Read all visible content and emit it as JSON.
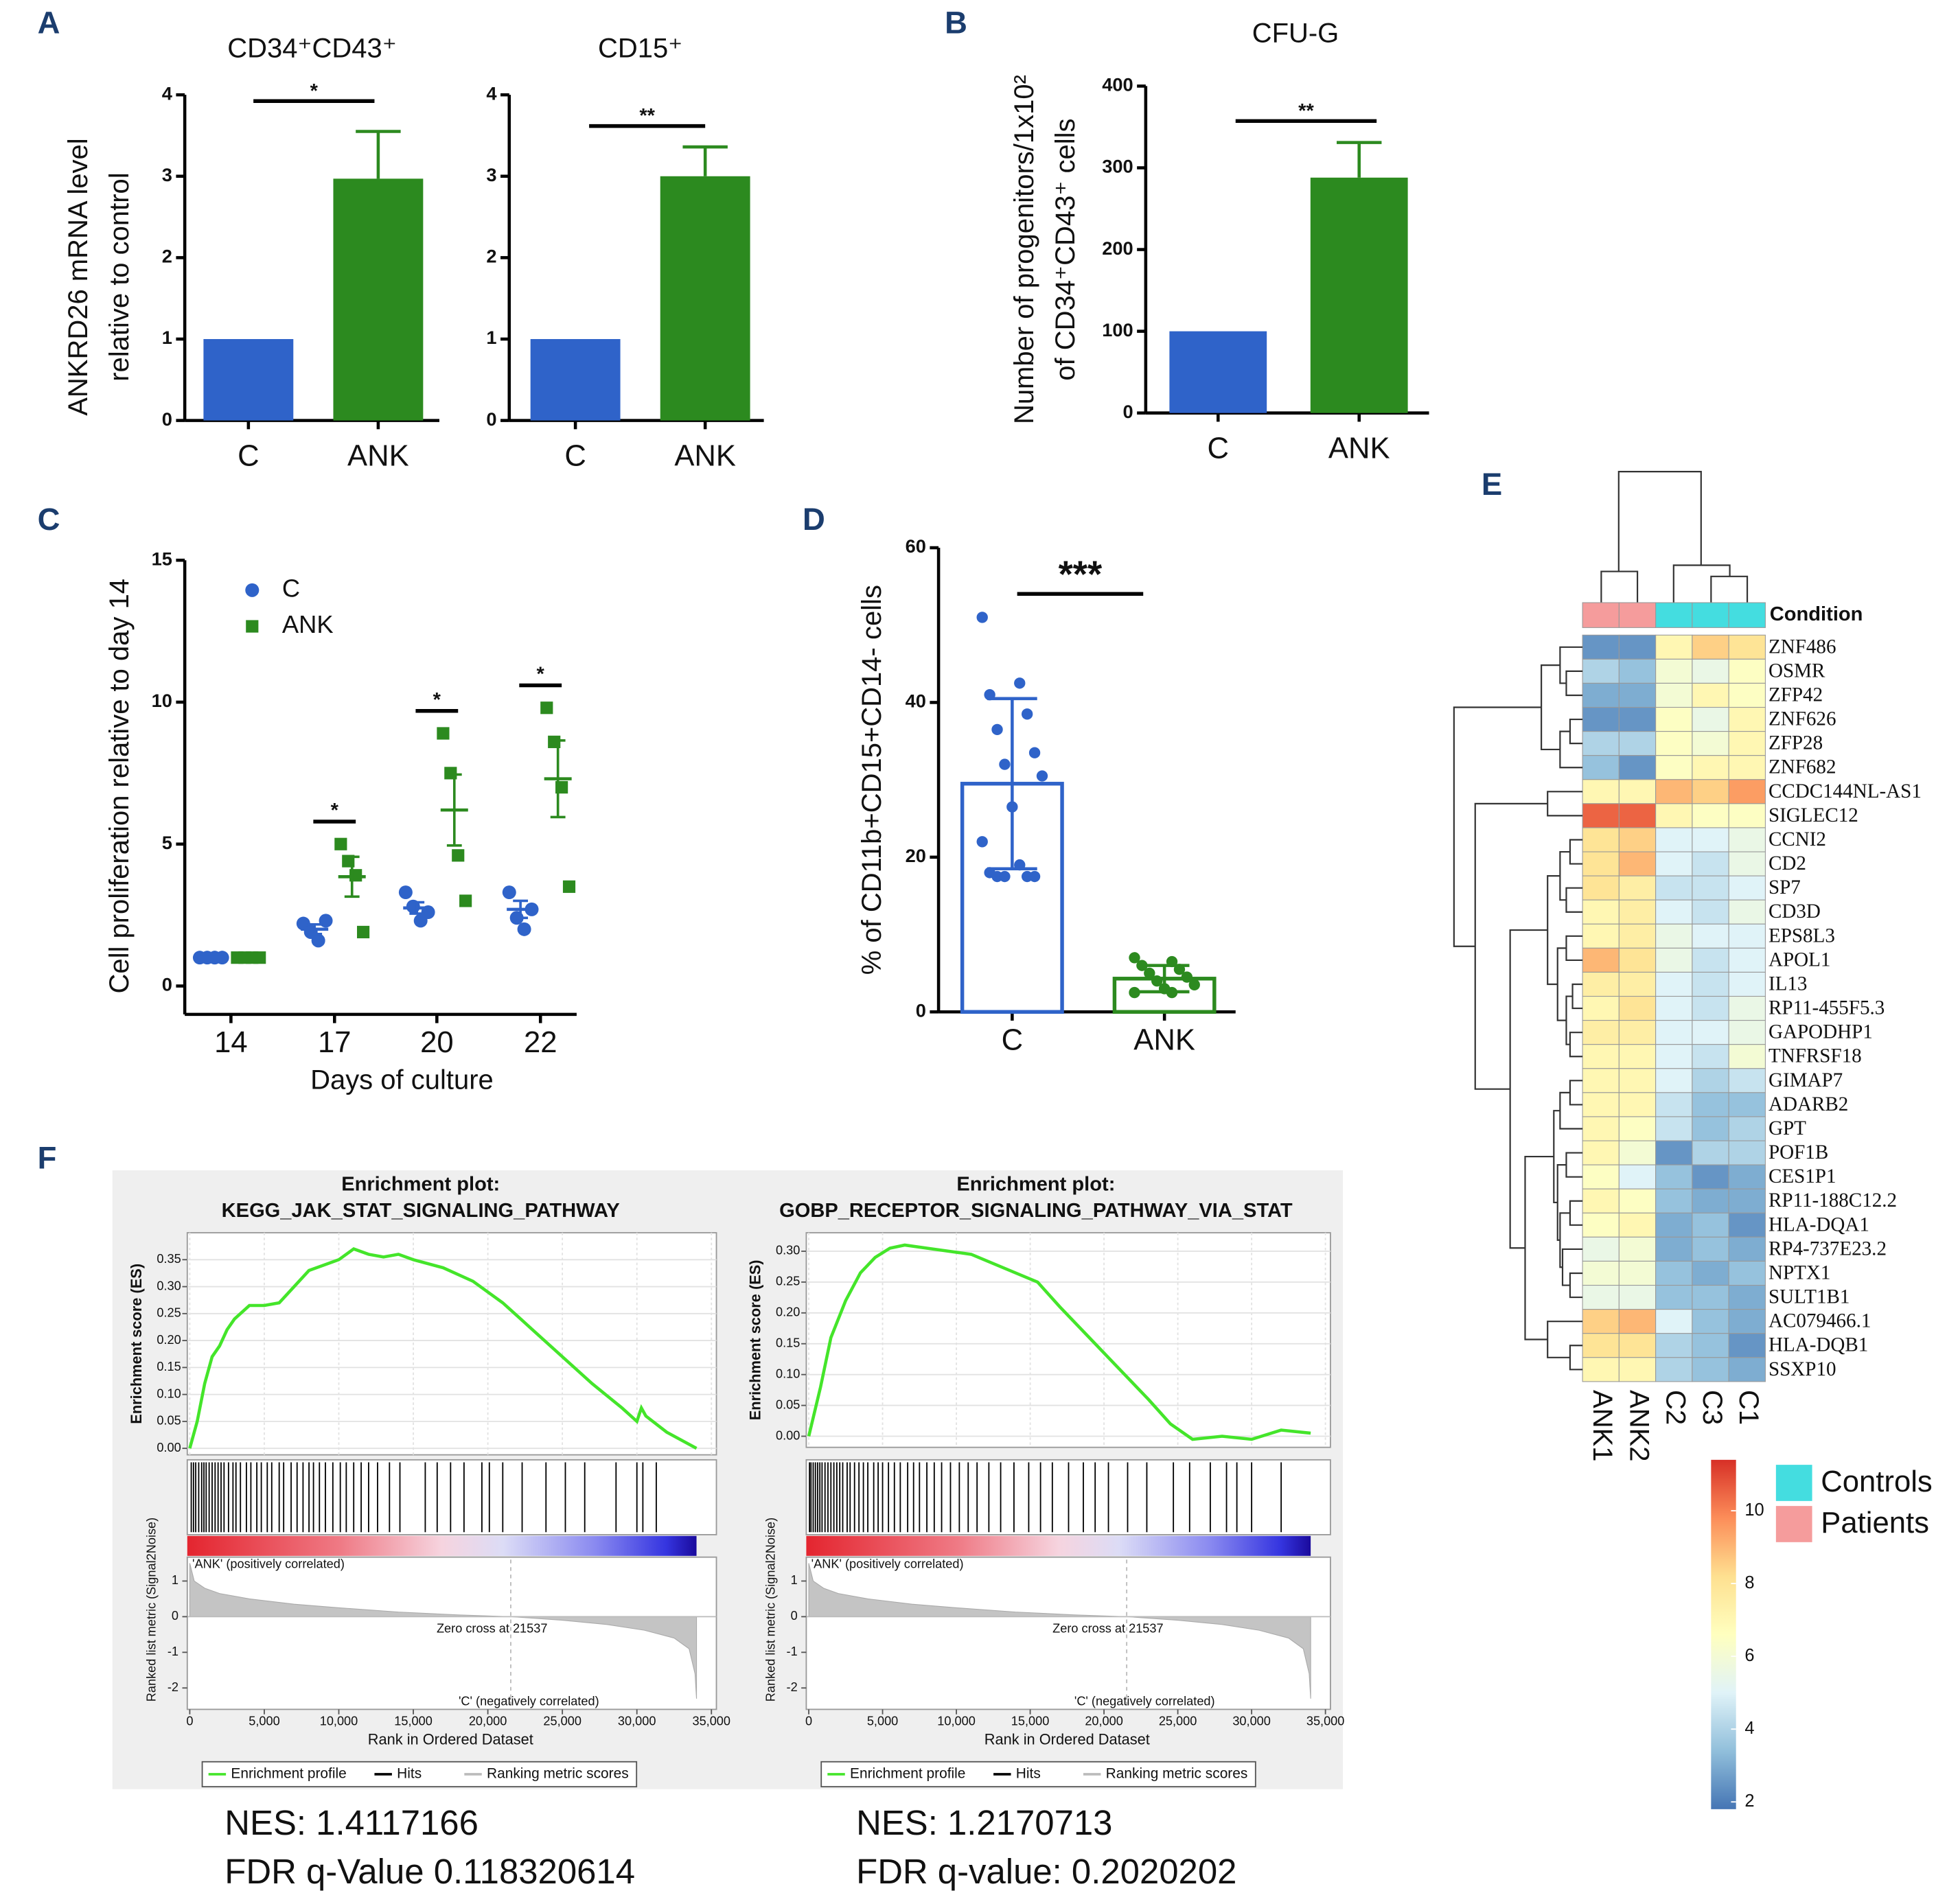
{
  "panel_labels": [
    "A",
    "B",
    "C",
    "D",
    "E",
    "F"
  ],
  "chart_data": [
    {
      "type": "bar",
      "title": "CD34⁺CD43⁺",
      "ylabel": [
        "ANKRD26 mRNA level",
        "relative to control"
      ],
      "categories": [
        "C",
        "ANK"
      ],
      "values": [
        1,
        2.97
      ],
      "errors": [
        null,
        0.58
      ],
      "colors": [
        "#2f63c9",
        "#2c8a1f"
      ],
      "ylim": [
        0,
        4
      ],
      "yticks": [
        0,
        1,
        2,
        3,
        4
      ],
      "significance": "*"
    },
    {
      "type": "bar",
      "title": "CD15⁺",
      "categories": [
        "C",
        "ANK"
      ],
      "values": [
        1,
        3.0
      ],
      "errors": [
        null,
        0.36
      ],
      "colors": [
        "#2f63c9",
        "#2c8a1f"
      ],
      "ylim": [
        0,
        4
      ],
      "yticks": [
        0,
        1,
        2,
        3,
        4
      ],
      "significance": "**"
    },
    {
      "type": "bar",
      "title": "CFU-G",
      "ylabel": [
        "Number of progenitors/1x10²",
        "of CD34⁺CD43⁺ cells"
      ],
      "categories": [
        "C",
        "ANK"
      ],
      "values": [
        100,
        288
      ],
      "errors": [
        null,
        43
      ],
      "colors": [
        "#2f63c9",
        "#2c8a1f"
      ],
      "ylim": [
        0,
        400
      ],
      "yticks": [
        0,
        100,
        200,
        300,
        400
      ],
      "significance": "**"
    },
    {
      "type": "dot",
      "xlabel": "Days of culture",
      "ylabel": "Cell proliferation relative to day 14",
      "categories": [
        "14",
        "17",
        "20",
        "22"
      ],
      "series": [
        {
          "name": "C",
          "color": "#2f63c9",
          "marker": "circle",
          "points": [
            [
              1,
              1,
              1,
              1
            ],
            [
              2.2,
              1.9,
              1.6,
              2.3
            ],
            [
              3.3,
              2.8,
              2.3,
              2.6
            ],
            [
              3.3,
              2.4,
              2.0,
              2.7
            ]
          ],
          "means": [
            1,
            2.0,
            2.75,
            2.7
          ],
          "sems": [
            0,
            0.17,
            0.2,
            0.3
          ]
        },
        {
          "name": "ANK",
          "color": "#2c8a1f",
          "marker": "square",
          "points": [
            [
              1,
              1,
              1,
              1
            ],
            [
              5.0,
              4.4,
              3.9,
              1.9
            ],
            [
              8.9,
              7.5,
              4.6,
              3.0
            ],
            [
              9.8,
              8.6,
              7.0,
              3.5
            ]
          ],
          "means": [
            1,
            3.85,
            6.2,
            7.3
          ],
          "sems": [
            0,
            0.7,
            1.25,
            1.35
          ]
        }
      ],
      "annotations": [
        null,
        "*",
        "*",
        "*"
      ],
      "ylim": [
        -1,
        15
      ],
      "yticks": [
        0,
        5,
        10,
        15
      ]
    },
    {
      "type": "bar_dot",
      "ylabel": "% of CD11b+CD15+CD14- cells",
      "categories": [
        "C",
        "ANK"
      ],
      "values": [
        29.5,
        4.3
      ],
      "errors": [
        11,
        1.7
      ],
      "colors": [
        "#2f63c9",
        "#2c8a1f"
      ],
      "points": [
        [
          51,
          42.5,
          41,
          38.5,
          36.5,
          33.5,
          32,
          30.5,
          26.5,
          22,
          19,
          18,
          17.5,
          17.5,
          17.5,
          17.5
        ],
        [
          7,
          6.5,
          6,
          5.5,
          5,
          4.5,
          4,
          3.5,
          3,
          2.5,
          2.5
        ]
      ],
      "ylim": [
        0,
        60
      ],
      "yticks": [
        0,
        20,
        40,
        60
      ],
      "significance": "***"
    },
    {
      "type": "heatmap",
      "legend_title": "Condition",
      "columns": [
        "ANK1",
        "ANK2",
        "C2",
        "C3",
        "C1"
      ],
      "column_condition": [
        "Patients",
        "Patients",
        "Controls",
        "Controls",
        "Controls"
      ],
      "legend": [
        {
          "name": "Controls",
          "color": "#44dde0"
        },
        {
          "name": "Patients",
          "color": "#f59c9c"
        }
      ],
      "rows": [
        "ZNF486",
        "OSMR",
        "ZFP42",
        "ZNF626",
        "ZFP28",
        "ZNF682",
        "CCDC144NL-AS1",
        "SIGLEC12",
        "CCNI2",
        "CD2",
        "SP7",
        "CD3D",
        "EPS8L3",
        "APOL1",
        "IL13",
        "RP11-455F5.3",
        "GAPODHP1",
        "TNFRSF18",
        "GIMAP7",
        "ADARB2",
        "GPT",
        "POF1B",
        "CES1P1",
        "RP11-188C12.2",
        "HLA-DQA1",
        "RP4-737E23.2",
        "NPTX1",
        "SULT1B1",
        "AC079466.1",
        "HLA-DQB1",
        "SSXP10"
      ],
      "values": [
        [
          2.5,
          2.5,
          7,
          8.5,
          8
        ],
        [
          4,
          3.5,
          6,
          5.5,
          6.5
        ],
        [
          3,
          3,
          6,
          7,
          6.5
        ],
        [
          2.5,
          2.5,
          6.5,
          5.5,
          7
        ],
        [
          4,
          4,
          6.5,
          6,
          7
        ],
        [
          3.5,
          2.5,
          6.5,
          7,
          7
        ],
        [
          7,
          7,
          9,
          8.5,
          9.5
        ],
        [
          10.5,
          10.5,
          7,
          6.5,
          6.5
        ],
        [
          8,
          8.5,
          5,
          5,
          5.5
        ],
        [
          8,
          9,
          5,
          4.5,
          5.5
        ],
        [
          8,
          7.5,
          4.5,
          4.5,
          5
        ],
        [
          7,
          7.5,
          5,
          4.5,
          5.5
        ],
        [
          7,
          7.5,
          5.5,
          5,
          5
        ],
        [
          9,
          8,
          5.5,
          4.5,
          5
        ],
        [
          7.5,
          7.5,
          5,
          4.5,
          5
        ],
        [
          7,
          8,
          5,
          4.5,
          5.5
        ],
        [
          7.5,
          7.5,
          5,
          5,
          5.5
        ],
        [
          7,
          7,
          5,
          4.5,
          6
        ],
        [
          7,
          7,
          5,
          4,
          4.5
        ],
        [
          7,
          7,
          4.5,
          3.5,
          3.5
        ],
        [
          7,
          6.5,
          4.5,
          3.5,
          4
        ],
        [
          7,
          6,
          2.5,
          4,
          4
        ],
        [
          6.5,
          5,
          3.5,
          2.5,
          3
        ],
        [
          7,
          6.5,
          3.5,
          3,
          3
        ],
        [
          6.5,
          7,
          3,
          3.5,
          2.5
        ],
        [
          5.5,
          6,
          3,
          3.5,
          3
        ],
        [
          6,
          6,
          3.5,
          3,
          3.5
        ],
        [
          5.5,
          5.5,
          3.5,
          3.5,
          3
        ],
        [
          8.5,
          9,
          5,
          3.5,
          3
        ],
        [
          8,
          8,
          4,
          3.5,
          2.5
        ],
        [
          7,
          7,
          4,
          3.5,
          3
        ]
      ],
      "colormap": [
        "#4575b4",
        "#91bfdb",
        "#e0f3f8",
        "#ffffbf",
        "#fee090",
        "#fc8d59",
        "#d73027"
      ],
      "clim": [
        1.8,
        11.4
      ],
      "colorbar_ticks": [
        2,
        4,
        6,
        8,
        10
      ]
    },
    {
      "type": "gsea",
      "title": "Enrichment plot:",
      "subtitle": "KEGG_JAK_STAT_SIGNALING_PATHWAY",
      "ylabel": "Enrichment score (ES)",
      "color": "#44e52a",
      "grid": true,
      "x": [
        0,
        500,
        1000,
        1500,
        2000,
        2500,
        3000,
        4000,
        5000,
        6000,
        7000,
        8000,
        9000,
        10000,
        11000,
        12000,
        13000,
        14000,
        15000,
        17000,
        19000,
        21000,
        23000,
        25000,
        27000,
        29000,
        30000,
        30300,
        30600,
        32000,
        34000
      ],
      "values": [
        0,
        0.05,
        0.12,
        0.17,
        0.19,
        0.22,
        0.24,
        0.265,
        0.265,
        0.27,
        0.3,
        0.33,
        0.34,
        0.35,
        0.37,
        0.36,
        0.355,
        0.36,
        0.35,
        0.335,
        0.31,
        0.27,
        0.22,
        0.17,
        0.12,
        0.075,
        0.05,
        0.075,
        0.06,
        0.03,
        0
      ],
      "xlim": [
        0,
        35000
      ],
      "xticks": [
        0,
        {
          "value": 5000,
          "label": "5,000"
        },
        {
          "value": 10000,
          "label": "10,000"
        },
        {
          "value": 15000,
          "label": "15,000"
        },
        {
          "value": 20000,
          "label": "20,000"
        },
        {
          "value": 25000,
          "label": "25,000"
        },
        {
          "value": 30000,
          "label": "30,000"
        },
        {
          "value": 35000,
          "label": "35,000"
        }
      ],
      "ylim": [
        -0.012,
        0.4
      ],
      "yticks": [
        {
          "value": 0,
          "label": "0.00"
        },
        0.05,
        {
          "value": 0.1,
          "label": "0.10"
        },
        0.15,
        {
          "value": 0.2,
          "label": "0.20"
        },
        0.25,
        {
          "value": 0.3,
          "label": "0.30"
        },
        0.35
      ],
      "hits": [
        100,
        250,
        400,
        600,
        800,
        950,
        1100,
        1300,
        1500,
        1700,
        1900,
        2100,
        2300,
        2600,
        2900,
        3100,
        3400,
        3800,
        4100,
        4500,
        4800,
        5200,
        5500,
        6000,
        6300,
        6800,
        7200,
        7600,
        8000,
        8300,
        8700,
        9100,
        9600,
        10100,
        10500,
        11000,
        11500,
        12000,
        12600,
        13400,
        14100,
        15800,
        16600,
        17500,
        18400,
        19600,
        20100,
        21000,
        22300,
        23900,
        25200,
        26500,
        28600,
        30000,
        30400,
        31300
      ],
      "metric_ylabel": "Ranked list metric (Signal2Noise)",
      "metric_x": [
        0,
        300,
        1000,
        2000,
        4000,
        7000,
        10000,
        14000,
        18000,
        21537,
        25000,
        28000,
        30500,
        32500,
        33500,
        33900,
        34000
      ],
      "metric_values": [
        1.5,
        1.0,
        0.8,
        0.65,
        0.5,
        0.35,
        0.25,
        0.13,
        0.05,
        0,
        -0.1,
        -0.22,
        -0.38,
        -0.6,
        -0.9,
        -1.6,
        -2.3
      ],
      "metric_ylim": [
        -2.6,
        1.6
      ],
      "metric_yticks": [
        1,
        0,
        -1,
        -2
      ],
      "zero_cross": 21537,
      "zero_cross_label": "Zero cross at 21537",
      "positive_label": "'ANK' (positively correlated)",
      "negative_label": "'C' (negatively correlated)",
      "xlabel": "Rank in Ordered Dataset",
      "legend": [
        "Enrichment profile",
        "Hits",
        "Ranking metric scores"
      ],
      "nes": "NES: 1.4117166",
      "fdr": "FDR q-Value 0.118320614"
    },
    {
      "type": "gsea",
      "title": "Enrichment plot:",
      "subtitle": "GOBP_RECEPTOR_SIGNALING_PATHWAY_VIA_STAT",
      "ylabel": "Enrichment score (ES)",
      "color": "#44e52a",
      "grid": true,
      "x": [
        0,
        300,
        800,
        1500,
        2500,
        3500,
        4500,
        5500,
        6500,
        8000,
        9500,
        11000,
        12500,
        14000,
        15500,
        17000,
        19000,
        21000,
        23000,
        24500,
        26000,
        28000,
        30000,
        32000,
        34000
      ],
      "values": [
        0,
        0.03,
        0.08,
        0.16,
        0.22,
        0.265,
        0.29,
        0.305,
        0.31,
        0.305,
        0.3,
        0.295,
        0.28,
        0.265,
        0.25,
        0.21,
        0.16,
        0.11,
        0.06,
        0.02,
        -0.005,
        0,
        -0.005,
        0.01,
        0.005
      ],
      "xlim": [
        0,
        35000
      ],
      "xticks": [
        0,
        {
          "value": 5000,
          "label": "5,000"
        },
        {
          "value": 10000,
          "label": "10,000"
        },
        {
          "value": 15000,
          "label": "15,000"
        },
        {
          "value": 20000,
          "label": "20,000"
        },
        {
          "value": 25000,
          "label": "25,000"
        },
        {
          "value": 30000,
          "label": "30,000"
        },
        {
          "value": 35000,
          "label": "35,000"
        }
      ],
      "ylim": [
        -0.018,
        0.33
      ],
      "yticks": [
        {
          "value": 0,
          "label": "0.00"
        },
        0.05,
        {
          "value": 0.1,
          "label": "0.10"
        },
        0.15,
        {
          "value": 0.2,
          "label": "0.20"
        },
        0.25,
        {
          "value": 0.3,
          "label": "0.30"
        }
      ],
      "hits": [
        50,
        150,
        300,
        450,
        600,
        750,
        900,
        1100,
        1300,
        1500,
        1700,
        1900,
        2100,
        2300,
        2600,
        2800,
        3100,
        3400,
        3700,
        4000,
        4400,
        4700,
        5000,
        5400,
        5800,
        6200,
        6700,
        7100,
        7500,
        8000,
        8500,
        9000,
        9600,
        10200,
        10800,
        11400,
        12200,
        13000,
        13900,
        14900,
        15700,
        16500,
        17600,
        18600,
        19400,
        20300,
        21600,
        22900,
        24700,
        25800,
        27200,
        28300,
        29000,
        30000,
        32000
      ],
      "metric_ylabel": "Ranked list metric (Signal2Noise)",
      "metric_x": [
        0,
        300,
        1000,
        2000,
        4000,
        7000,
        10000,
        14000,
        18000,
        21537,
        25000,
        28000,
        30500,
        32500,
        33500,
        33900,
        34000
      ],
      "metric_values": [
        1.5,
        1.0,
        0.8,
        0.65,
        0.5,
        0.35,
        0.25,
        0.13,
        0.05,
        0,
        -0.1,
        -0.22,
        -0.38,
        -0.6,
        -0.9,
        -1.6,
        -2.3
      ],
      "metric_ylim": [
        -2.6,
        1.6
      ],
      "metric_yticks": [
        1,
        0,
        -1,
        -2
      ],
      "zero_cross": 21537,
      "zero_cross_label": "Zero cross at 21537",
      "positive_label": "'ANK' (positively correlated)",
      "negative_label": "'C' (negatively correlated)",
      "xlabel": "Rank in Ordered Dataset",
      "legend": [
        "Enrichment profile",
        "Hits",
        "Ranking metric scores"
      ],
      "nes": "NES: 1.2170713",
      "fdr": "FDR q-value: 0.2020202"
    }
  ]
}
